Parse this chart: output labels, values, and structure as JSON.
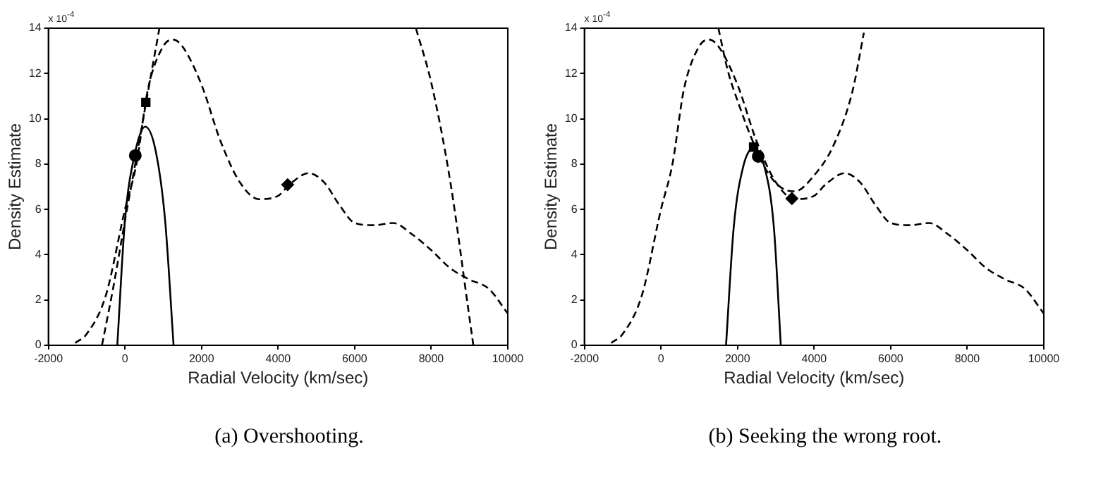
{
  "chart_data": [
    {
      "type": "line",
      "xlabel": "Radial Velocity (km/sec)",
      "ylabel": "Density Estimate",
      "annotations": [
        "x 10$^{-4}$",
        "(a) Overshooting."
      ],
      "xlim": [
        -2000,
        10000
      ],
      "xticks": [
        -2000,
        0,
        2000,
        4000,
        6000,
        8000,
        10000
      ],
      "ylim": [
        0,
        14
      ],
      "yticks": [
        0,
        2,
        4,
        6,
        8,
        10,
        12,
        14
      ],
      "grid": false,
      "legend": false,
      "series": [
        {
          "type": "line",
          "color": "#000000",
          "line_style": "dashed",
          "x": [
            -1300,
            -1000,
            -500,
            0,
            300,
            600,
            1000,
            1250,
            1500,
            2000,
            2500,
            3000,
            3500,
            4000,
            4300,
            4800,
            5200,
            5600,
            6000,
            6500,
            7000,
            7500,
            8000,
            8500,
            9000,
            9500,
            10000
          ],
          "values": [
            0.1,
            0.5,
            2.2,
            6.0,
            8.0,
            11.3,
            13.2,
            13.5,
            13.2,
            11.5,
            9.0,
            7.2,
            6.45,
            6.6,
            7.1,
            7.6,
            7.2,
            6.2,
            5.4,
            5.3,
            5.4,
            4.9,
            4.2,
            3.4,
            2.9,
            2.5,
            1.4
          ]
        },
        {
          "type": "line",
          "color": "#000000",
          "line_style": "dashed",
          "x": [
            -600,
            -300,
            0,
            300,
            550,
            900
          ],
          "values": [
            0,
            2.6,
            5.5,
            8.3,
            10.7,
            14
          ]
        },
        {
          "type": "line",
          "color": "#000000",
          "line_style": "dashed",
          "x": [
            7600,
            8000,
            8500,
            9000,
            9100
          ],
          "values": [
            14,
            11.6,
            7.2,
            1.2,
            0
          ]
        },
        {
          "type": "line",
          "color": "#000000",
          "line_style": "solid",
          "x": [
            -200,
            0,
            250,
            530,
            800,
            1050,
            1270
          ],
          "values": [
            0,
            5.5,
            8.4,
            9.65,
            8.6,
            5.5,
            0
          ]
        },
        {
          "type": "scatter",
          "color": "#000000",
          "marker": "circle",
          "x": [
            270
          ],
          "values": [
            8.38
          ]
        },
        {
          "type": "scatter",
          "color": "#000000",
          "marker": "square",
          "x": [
            545
          ],
          "values": [
            10.72
          ]
        },
        {
          "type": "scatter",
          "color": "#000000",
          "marker": "diamond",
          "x": [
            4250
          ],
          "values": [
            7.09
          ]
        }
      ]
    },
    {
      "type": "line",
      "xlabel": "Radial Velocity (km/sec)",
      "ylabel": "Density Estimate",
      "annotations": [
        "x 10$^{-4}$",
        "(b) Seeking the wrong root."
      ],
      "xlim": [
        -2000,
        10000
      ],
      "xticks": [
        -2000,
        0,
        2000,
        4000,
        6000,
        8000,
        10000
      ],
      "ylim": [
        0,
        14
      ],
      "yticks": [
        0,
        2,
        4,
        6,
        8,
        10,
        12,
        14
      ],
      "grid": false,
      "legend": false,
      "series": [
        {
          "type": "line",
          "color": "#000000",
          "line_style": "dashed",
          "x": [
            -1300,
            -1000,
            -500,
            0,
            300,
            600,
            1000,
            1250,
            1500,
            2000,
            2500,
            3000,
            3500,
            4000,
            4300,
            4800,
            5200,
            5600,
            6000,
            6500,
            7000,
            7500,
            8000,
            8500,
            9000,
            9500,
            10000
          ],
          "values": [
            0.1,
            0.5,
            2.2,
            6.0,
            8.0,
            11.3,
            13.2,
            13.5,
            13.2,
            11.5,
            9.0,
            7.2,
            6.45,
            6.6,
            7.1,
            7.6,
            7.2,
            6.2,
            5.4,
            5.3,
            5.4,
            4.9,
            4.2,
            3.4,
            2.9,
            2.5,
            1.4
          ]
        },
        {
          "type": "line",
          "color": "#000000",
          "line_style": "dashed",
          "x": [
            1500,
            1750,
            2000,
            2400,
            2800,
            3200,
            3500,
            4000,
            4500,
            5000,
            5300
          ],
          "values": [
            14,
            12.1,
            10.8,
            9.0,
            7.6,
            6.9,
            6.8,
            7.5,
            8.8,
            11.2,
            13.8
          ]
        },
        {
          "type": "line",
          "color": "#000000",
          "line_style": "solid",
          "x": [
            1700,
            1900,
            2150,
            2420,
            2700,
            2950,
            3130
          ],
          "values": [
            0,
            5.2,
            7.9,
            8.7,
            7.9,
            5.2,
            0
          ]
        },
        {
          "type": "scatter",
          "color": "#000000",
          "marker": "square",
          "x": [
            2420
          ],
          "values": [
            8.75
          ]
        },
        {
          "type": "scatter",
          "color": "#000000",
          "marker": "circle",
          "x": [
            2540
          ],
          "values": [
            8.34
          ]
        },
        {
          "type": "scatter",
          "color": "#000000",
          "marker": "diamond",
          "x": [
            3420
          ],
          "values": [
            6.48
          ]
        }
      ]
    }
  ]
}
